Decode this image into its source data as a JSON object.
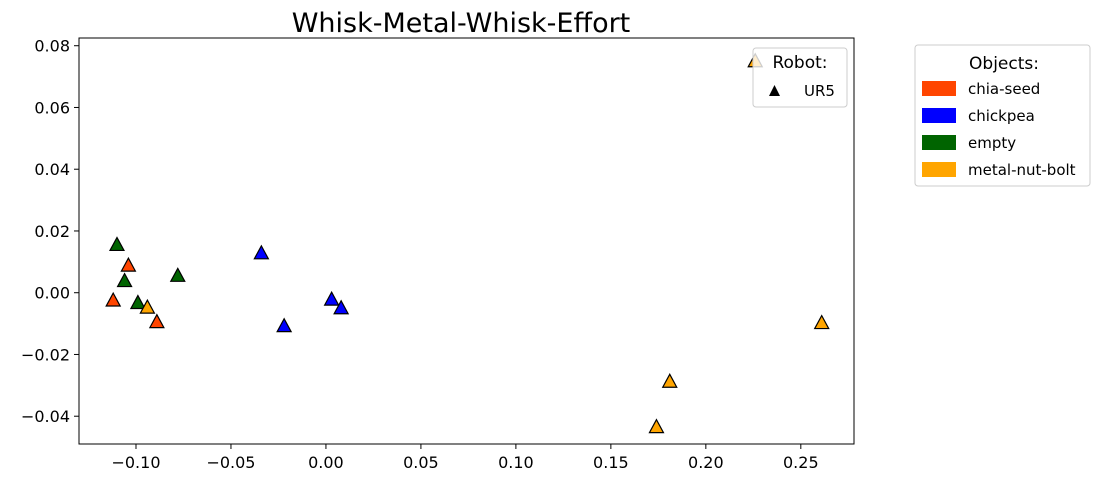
{
  "chart_data": {
    "type": "scatter",
    "title": "Whisk-Metal-Whisk-Effort",
    "xlabel": "",
    "ylabel": "",
    "xlim": [
      -0.13,
      0.278
    ],
    "ylim": [
      -0.049,
      0.0825
    ],
    "x_ticks": [
      -0.1,
      -0.05,
      0.0,
      0.05,
      0.1,
      0.15,
      0.2,
      0.25
    ],
    "x_tick_labels": [
      "−0.10",
      "−0.05",
      "0.00",
      "0.05",
      "0.10",
      "0.15",
      "0.20",
      "0.25"
    ],
    "y_ticks": [
      -0.04,
      -0.02,
      0.0,
      0.02,
      0.04,
      0.06,
      0.08
    ],
    "y_tick_labels": [
      "−0.04",
      "−0.02",
      "0.00",
      "0.02",
      "0.04",
      "0.06",
      "0.08"
    ],
    "grid": false,
    "marker": "triangle",
    "series": [
      {
        "name": "chia-seed",
        "color": "#ff4500",
        "points": [
          [
            -0.112,
            -0.0025
          ],
          [
            -0.104,
            0.0088
          ],
          [
            -0.089,
            -0.0095
          ]
        ]
      },
      {
        "name": "chickpea",
        "color": "#0000ff",
        "points": [
          [
            -0.034,
            0.0128
          ],
          [
            -0.022,
            -0.0108
          ],
          [
            0.003,
            -0.0022
          ],
          [
            0.008,
            -0.005
          ]
        ]
      },
      {
        "name": "empty",
        "color": "#006400",
        "points": [
          [
            -0.11,
            0.0155
          ],
          [
            -0.106,
            0.0038
          ],
          [
            -0.099,
            -0.0033
          ],
          [
            -0.078,
            0.0055
          ]
        ]
      },
      {
        "name": "metal-nut-bolt",
        "color": "#ffa500",
        "points": [
          [
            -0.094,
            -0.0048
          ],
          [
            0.174,
            -0.0435
          ],
          [
            0.181,
            -0.0288
          ],
          [
            0.261,
            -0.0098
          ],
          [
            0.226,
            0.075
          ]
        ]
      }
    ],
    "legends": [
      {
        "title": "Robot:",
        "placement": "top-right inside axes",
        "entries": [
          {
            "label": "UR5",
            "marker": "triangle",
            "color": "#000000"
          }
        ]
      },
      {
        "title": "Objects:",
        "placement": "outside right",
        "entries": [
          {
            "label": "chia-seed",
            "color": "#ff4500"
          },
          {
            "label": "chickpea",
            "color": "#0000ff"
          },
          {
            "label": "empty",
            "color": "#006400"
          },
          {
            "label": "metal-nut-bolt",
            "color": "#ffa500"
          }
        ]
      }
    ]
  }
}
